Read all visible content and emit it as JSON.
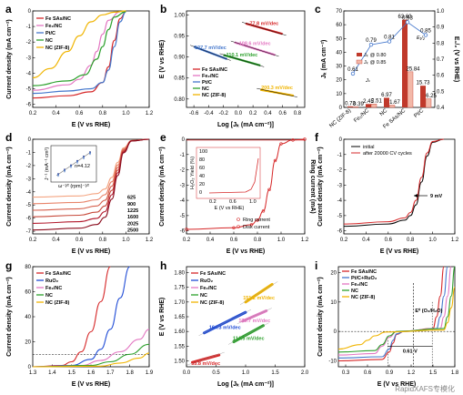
{
  "colors": {
    "fe_sas": "#d62728",
    "fe2": "#e377c2",
    "ptc": "#4477cc",
    "nc": "#2ca02c",
    "nczif": "#f0b400",
    "ruo2": "#1f4bd6"
  },
  "a": {
    "label": "a",
    "xlabel": "E (V vs RHE)",
    "ylabel": "Current density (mA cm⁻²)",
    "xticks": [
      "0.2",
      "0.4",
      "0.6",
      "0.8",
      "1.0",
      "1.2"
    ],
    "yticks": [
      "0",
      "-1",
      "-2",
      "-3",
      "-4",
      "-5",
      "-6"
    ],
    "legend": [
      "Fe SAs/NC",
      "Fe₂/NC",
      "Pt/C",
      "NC",
      "NC (ZIF-8)"
    ]
  },
  "b": {
    "label": "b",
    "xlabel": "Log [Jₖ (mA cm⁻²)]",
    "ylabel": "E (V vs RHE)",
    "xticks": [
      "-0.6",
      "-0.4",
      "-0.2",
      "0.0",
      "0.2",
      "0.4",
      "0.6",
      "0.8"
    ],
    "yticks": [
      "0.80",
      "0.85",
      "0.90",
      "0.95",
      "1.00"
    ],
    "legend": [
      "Fe SAs/NC",
      "Fe₂/NC",
      "Pt/C",
      "NC",
      "NC (ZIF-8)"
    ],
    "tafels": [
      "77.8 mV/dec",
      "108.6 mV/dec",
      "127.7 mV/dec",
      "110.1 mV/dec",
      "200.3 mV/dec"
    ]
  },
  "c": {
    "label": "c",
    "ylabel_left": "Jₖ (mA cm⁻²)",
    "ylabel_right": "E₁/₂ (V vs RHE)",
    "legend": [
      "Jₖ @ 0.80",
      "Jₖ @ 0.85"
    ],
    "ylabel_jk": "Jₖ",
    "e12_label": "E₁/₂",
    "yticks_left": [
      "0",
      "10",
      "20",
      "30",
      "40",
      "50",
      "60",
      "70"
    ],
    "yticks_right": [
      "0.4",
      "0.5",
      "0.6",
      "0.7",
      "0.8",
      "0.9",
      "1.0"
    ],
    "categories": [
      "NC (ZIF-8)",
      "Fe₂/NC",
      "NC",
      "Fe SAs/NC",
      "Pt/C"
    ],
    "e12_labels": [
      "0.61",
      "0.79",
      "0.81",
      "0.93",
      "0.85"
    ],
    "jk080_labels": [
      "0.73",
      "2.45",
      "6.97",
      "63.60",
      "15.73"
    ],
    "jk085_labels": [
      "0.39",
      "2.51",
      "1.67",
      "25.84",
      "6.25"
    ]
  },
  "d": {
    "label": "d",
    "xlabel": "E (V vs RHE)",
    "ylabel": "Current density (mA cm⁻²)",
    "xticks": [
      "0.2",
      "0.4",
      "0.6",
      "0.8",
      "1.0",
      "1.2"
    ],
    "yticks": [
      "0",
      "-1",
      "-2",
      "-3",
      "-4",
      "-5",
      "-6",
      "-7"
    ],
    "rpm": [
      "625",
      "900",
      "1225",
      "1600",
      "2025",
      "2500"
    ],
    "inset_n": "n=4.12",
    "inset_ylabel": "J⁻¹ (mA⁻¹ cm²)",
    "inset_xlabel": "ω⁻¹⁄² (rpm)⁻¹⁄²"
  },
  "e": {
    "label": "e",
    "xlabel": "E (V vs RHE)",
    "ylabel": "Current density (mA cm⁻²)",
    "y2label": "Ring current (mA)",
    "xticks": [
      "0.2",
      "0.4",
      "0.6",
      "0.8",
      "1.0",
      "1.2"
    ],
    "yticks": [
      "0",
      "-1",
      "-2",
      "-3",
      "-4",
      "-5",
      "-6"
    ],
    "legend": [
      "Ring current",
      "Disk current"
    ],
    "inset_ylabel": "H₂O₂ Yield (%)",
    "inset_xlabel": "E (V vs RHE)",
    "inset_yticks": [
      "100",
      "80",
      "60",
      "40",
      "20",
      "0"
    ],
    "inset_xticks": [
      "0.2",
      "0.6",
      "1.0"
    ]
  },
  "f": {
    "label": "f",
    "xlabel": "E (V vs RHE)",
    "ylabel": "Current density (mA cm⁻²)",
    "xticks": [
      "0.2",
      "0.4",
      "0.6",
      "0.8",
      "1.0",
      "1.2"
    ],
    "yticks": [
      "0",
      "-1",
      "-2",
      "-3",
      "-4",
      "-5",
      "-6"
    ],
    "legend": [
      "initial",
      "after 20000 CV cycles"
    ],
    "shift": "9 mV"
  },
  "g": {
    "label": "g",
    "xlabel": "E (V vs RHE)",
    "ylabel": "Current density (mA cm⁻²)",
    "xticks": [
      "1.3",
      "1.4",
      "1.5",
      "1.6",
      "1.7",
      "1.8",
      "1.9"
    ],
    "yticks": [
      "0",
      "20",
      "40",
      "60",
      "80"
    ],
    "legend": [
      "Fe SAs/NC",
      "RuO₂",
      "Fe₂/NC",
      "NC",
      "NC (ZIF-8)"
    ]
  },
  "h": {
    "label": "h",
    "xlabel": "Log [Jₖ (mA cm⁻²)]",
    "ylabel": "E (V vs RHE)",
    "xticks": [
      "0.0",
      "0.5",
      "1.0",
      "1.5",
      "2.0"
    ],
    "yticks": [
      "1.50",
      "1.55",
      "1.60",
      "1.65",
      "1.70",
      "1.75",
      "1.80"
    ],
    "legend": [
      "Fe SAs/NC",
      "RuO₂",
      "Fe₂/NC",
      "NC",
      "NC (ZIF-8)"
    ],
    "tafels": [
      "55.8 mV/dec",
      "164.3 mV/dec",
      "170.7 mV/dec",
      "114.5 mV/dec",
      "151.2 mV/dec"
    ]
  },
  "i": {
    "label": "i",
    "xlabel": "E (V vs RHE)",
    "ylabel": "Current density (mA cm⁻²)",
    "xticks": [
      "0.3",
      "0.6",
      "0.9",
      "1.2",
      "1.5",
      "1.8"
    ],
    "yticks": [
      "20",
      "10",
      "0",
      "-10"
    ],
    "legend": [
      "Fe SAs/NC",
      "Pt/C+RuO₂",
      "Fe₂/NC",
      "NC",
      "NC (ZIF-8)"
    ],
    "e0": "E⁰ (O₂/H₂O)",
    "gap": "0.61 V"
  },
  "watermark": "RapidXAFS专模化",
  "chart_data": [
    {
      "panel": "a",
      "type": "line",
      "xlabel": "E (V vs RHE)",
      "ylabel": "Current density (mA cm⁻²)",
      "xlim": [
        0.2,
        1.2
      ],
      "ylim": [
        -6.2,
        0
      ],
      "series": [
        {
          "name": "Fe SAs/NC",
          "x": [
            0.2,
            0.5,
            0.7,
            0.8,
            0.85,
            0.9,
            0.95,
            1.0
          ],
          "y": [
            -5.6,
            -5.45,
            -5.2,
            -4.6,
            -3.6,
            -1.9,
            -0.5,
            -0.05
          ]
        },
        {
          "name": "Fe₂/NC",
          "x": [
            0.2,
            0.5,
            0.6,
            0.7,
            0.75,
            0.8,
            0.85,
            0.95
          ],
          "y": [
            -5.1,
            -4.75,
            -4.4,
            -3.5,
            -2.6,
            -1.5,
            -0.6,
            -0.05
          ]
        },
        {
          "name": "Pt/C",
          "x": [
            0.2,
            0.5,
            0.7,
            0.8,
            0.85,
            0.9,
            0.95,
            1.0
          ],
          "y": [
            -5.3,
            -5.15,
            -5.0,
            -4.6,
            -3.8,
            -2.3,
            -0.7,
            -0.05
          ]
        },
        {
          "name": "NC",
          "x": [
            0.2,
            0.5,
            0.65,
            0.75,
            0.8,
            0.85,
            0.9,
            1.0
          ],
          "y": [
            -4.8,
            -4.5,
            -4.1,
            -3.1,
            -2.3,
            -1.2,
            -0.4,
            -0.05
          ]
        },
        {
          "name": "NC (ZIF-8)",
          "x": [
            0.2,
            0.35,
            0.5,
            0.6,
            0.7,
            0.8,
            0.9,
            1.0
          ],
          "y": [
            -4.3,
            -3.7,
            -2.6,
            -1.6,
            -0.7,
            -0.25,
            -0.08,
            0
          ]
        }
      ]
    },
    {
      "panel": "b",
      "type": "line",
      "xlabel": "Log [Jₖ]",
      "ylabel": "E (V vs RHE)",
      "xlim": [
        -0.7,
        0.9
      ],
      "ylim": [
        0.78,
        1.01
      ],
      "series": [
        {
          "name": "Fe SAs/NC",
          "x": [
            0.1,
            0.6
          ],
          "y": [
            0.98,
            0.955
          ]
        },
        {
          "name": "Fe₂/NC",
          "x": [
            -0.05,
            0.5
          ],
          "y": [
            0.935,
            0.905
          ]
        },
        {
          "name": "Pt/C",
          "x": [
            -0.6,
            -0.15
          ],
          "y": [
            0.925,
            0.895
          ]
        },
        {
          "name": "NC",
          "x": [
            -0.2,
            0.3
          ],
          "y": [
            0.905,
            0.88
          ]
        },
        {
          "name": "NC (ZIF-8)",
          "x": [
            0.3,
            0.75
          ],
          "y": [
            0.822,
            0.808
          ]
        }
      ]
    },
    {
      "panel": "c",
      "type": "bar",
      "categories": [
        "NC (ZIF-8)",
        "Fe₂/NC",
        "NC",
        "Fe SAs/NC",
        "Pt/C"
      ],
      "series": [
        {
          "name": "Jₖ @ 0.80",
          "values": [
            0.73,
            2.45,
            6.97,
            63.6,
            15.73
          ]
        },
        {
          "name": "Jₖ @ 0.85",
          "values": [
            0.39,
            2.51,
            1.67,
            25.84,
            6.25
          ]
        },
        {
          "name": "E₁/₂",
          "values": [
            0.61,
            0.79,
            0.81,
            0.93,
            0.85
          ]
        }
      ],
      "ylim_left": [
        0,
        70
      ],
      "ylim_right": [
        0.4,
        1.0
      ]
    },
    {
      "panel": "d",
      "type": "line",
      "xlabel": "E (V vs RHE)",
      "ylabel": "Current density (mA cm⁻²)",
      "xlim": [
        0.2,
        1.2
      ],
      "ylim": [
        -7.2,
        0
      ],
      "series": [
        {
          "name": "625",
          "limit": -4.4
        },
        {
          "name": "900",
          "limit": -4.9
        },
        {
          "name": "1225",
          "limit": -5.4
        },
        {
          "name": "1600",
          "limit": -5.9
        },
        {
          "name": "2025",
          "limit": -6.4
        },
        {
          "name": "2500",
          "limit": -6.9
        }
      ]
    },
    {
      "panel": "e",
      "type": "line",
      "xlabel": "E (V vs RHE)",
      "ylabel": "Current density (mA cm⁻²)",
      "xlim": [
        0.2,
        1.2
      ],
      "ylim": [
        -6.2,
        0
      ],
      "series": [
        {
          "name": "Disk current",
          "x": [
            0.2,
            0.6,
            0.75,
            0.8,
            0.85,
            0.9,
            0.95,
            1.0,
            1.1,
            1.2
          ],
          "y": [
            -5.9,
            -5.8,
            -5.6,
            -5.3,
            -4.7,
            -3.3,
            -1.4,
            -0.3,
            -0.05,
            0
          ]
        },
        {
          "name": "Ring current",
          "x": [
            0.2,
            1.2
          ],
          "y": [
            0,
            0
          ]
        }
      ]
    },
    {
      "panel": "f",
      "type": "line",
      "xlabel": "E (V vs RHE)",
      "ylabel": "Current density (mA cm⁻²)",
      "xlim": [
        0.2,
        1.2
      ],
      "ylim": [
        -6.2,
        0
      ],
      "series": [
        {
          "name": "initial",
          "x": [
            0.2,
            0.6,
            0.75,
            0.8,
            0.85,
            0.9,
            0.95,
            1.0,
            1.1
          ],
          "y": [
            -5.7,
            -5.55,
            -5.3,
            -5.0,
            -4.3,
            -2.8,
            -1.1,
            -0.2,
            0
          ]
        },
        {
          "name": "after 20000 CV cycles",
          "x": [
            0.2,
            0.6,
            0.75,
            0.8,
            0.85,
            0.9,
            0.95,
            1.0,
            1.1
          ],
          "y": [
            -5.55,
            -5.4,
            -5.15,
            -4.8,
            -4.0,
            -2.5,
            -0.9,
            -0.15,
            0
          ]
        }
      ]
    },
    {
      "panel": "g",
      "type": "line",
      "xlabel": "E (V vs RHE)",
      "ylabel": "Current density (mA cm⁻²)",
      "xlim": [
        1.3,
        1.9
      ],
      "ylim": [
        0,
        80
      ],
      "series": [
        {
          "name": "Fe SAs/NC",
          "x": [
            1.3,
            1.45,
            1.5,
            1.55,
            1.6,
            1.65,
            1.7
          ],
          "y": [
            0,
            1,
            4,
            12,
            28,
            52,
            80
          ]
        },
        {
          "name": "RuO₂",
          "x": [
            1.3,
            1.5,
            1.6,
            1.65,
            1.7,
            1.75,
            1.8
          ],
          "y": [
            0,
            1,
            6,
            14,
            30,
            55,
            80
          ]
        },
        {
          "name": "Fe₂/NC",
          "x": [
            1.3,
            1.55,
            1.65,
            1.75,
            1.85,
            1.9
          ],
          "y": [
            0,
            1,
            5,
            12,
            22,
            30
          ]
        },
        {
          "name": "NC",
          "x": [
            1.3,
            1.6,
            1.7,
            1.8,
            1.9
          ],
          "y": [
            0,
            1,
            4,
            10,
            18
          ]
        },
        {
          "name": "NC (ZIF-8)",
          "x": [
            1.3,
            1.65,
            1.75,
            1.85,
            1.9
          ],
          "y": [
            0,
            0.5,
            3,
            7,
            11
          ]
        }
      ]
    },
    {
      "panel": "h",
      "type": "line",
      "xlabel": "Log [Jₖ]",
      "ylabel": "E (V vs RHE)",
      "xlim": [
        0,
        2
      ],
      "ylim": [
        1.5,
        1.8
      ],
      "series": [
        {
          "name": "Fe SAs/NC",
          "x": [
            0.1,
            0.55
          ],
          "y": [
            1.495,
            1.52
          ]
        },
        {
          "name": "RuO₂",
          "x": [
            0.3,
            1.0
          ],
          "y": [
            1.595,
            1.665
          ]
        },
        {
          "name": "Fe₂/NC",
          "x": [
            0.95,
            1.35
          ],
          "y": [
            1.635,
            1.67
          ]
        },
        {
          "name": "NC",
          "x": [
            0.8,
            1.3
          ],
          "y": [
            1.565,
            1.62
          ]
        },
        {
          "name": "NC (ZIF-8)",
          "x": [
            1.0,
            1.45
          ],
          "y": [
            1.7,
            1.76
          ]
        }
      ]
    },
    {
      "panel": "i",
      "type": "line",
      "xlabel": "E (V vs RHE)",
      "ylabel": "Current density (mA cm⁻²)",
      "xlim": [
        0.2,
        1.8
      ],
      "ylim": [
        -12,
        22
      ],
      "series": [
        {
          "name": "Fe SAs/NC",
          "x": [
            0.2,
            0.8,
            0.9,
            0.95,
            1.0,
            1.1,
            1.5,
            1.55,
            1.6,
            1.65
          ],
          "y": [
            -10,
            -9.5,
            -7,
            -4,
            -1,
            0,
            1,
            5,
            12,
            22
          ]
        },
        {
          "name": "Pt/C+RuO₂",
          "x": [
            0.2,
            0.8,
            0.9,
            0.95,
            1.0,
            1.1,
            1.55,
            1.6,
            1.65,
            1.7
          ],
          "y": [
            -9,
            -8.6,
            -6,
            -3,
            -0.8,
            0,
            1,
            5,
            12,
            22
          ]
        },
        {
          "name": "Fe₂/NC",
          "x": [
            0.2,
            0.7,
            0.8,
            0.9,
            1.0,
            1.6,
            1.65,
            1.7,
            1.75
          ],
          "y": [
            -8,
            -7.5,
            -5,
            -2,
            0,
            1,
            5,
            12,
            22
          ]
        },
        {
          "name": "NC",
          "x": [
            0.2,
            0.7,
            0.8,
            0.9,
            1.0,
            1.65,
            1.7,
            1.75,
            1.8
          ],
          "y": [
            -7,
            -6.5,
            -4.5,
            -1.5,
            0,
            1,
            5,
            12,
            22
          ]
        },
        {
          "name": "NC (ZIF-8)",
          "x": [
            0.2,
            0.5,
            0.6,
            0.7,
            0.85,
            1.65,
            1.7,
            1.75,
            1.8
          ],
          "y": [
            -6,
            -4.5,
            -3,
            -1.5,
            -0.2,
            0.5,
            3,
            8,
            15
          ]
        }
      ]
    }
  ]
}
